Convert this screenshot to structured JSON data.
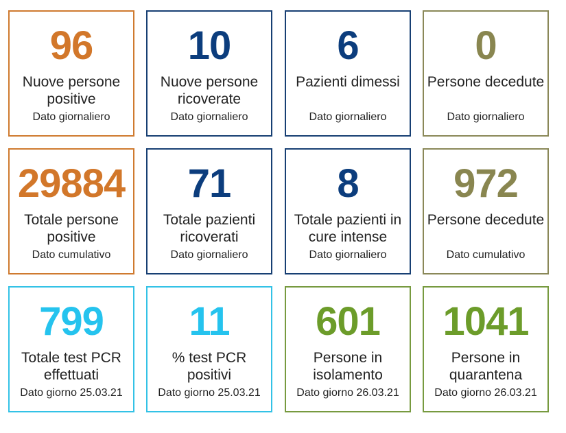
{
  "cards": [
    {
      "value": "96",
      "label": "Nuove persone positive",
      "sub": "Dato giornaliero",
      "color": "#d2772a"
    },
    {
      "value": "10",
      "label": "Nuove persone ricoverate",
      "sub": "Dato giornaliero",
      "color": "#0c3d7d"
    },
    {
      "value": "6",
      "label": "Pazienti dimessi",
      "sub": "Dato giornaliero",
      "color": "#0c3d7d"
    },
    {
      "value": "0",
      "label": "Persone decedute",
      "sub": "Dato giornaliero",
      "color": "#898650"
    },
    {
      "value": "29884",
      "label": "Totale persone positive",
      "sub": "Dato cumulativo",
      "color": "#d2772a"
    },
    {
      "value": "71",
      "label": "Totale pazienti ricoverati",
      "sub": "Dato giornaliero",
      "color": "#0c3d7d"
    },
    {
      "value": "8",
      "label": "Totale pazienti in cure intense",
      "sub": "Dato giornaliero",
      "color": "#0c3d7d"
    },
    {
      "value": "972",
      "label": "Persone decedute",
      "sub": "Dato cumulativo",
      "color": "#898650"
    },
    {
      "value": "799",
      "label": "Totale test PCR effettuati",
      "sub": "Dato giorno 25.03.21",
      "color": "#25c3ee"
    },
    {
      "value": "11",
      "label": "% test PCR positivi",
      "sub": "Dato giorno 25.03.21",
      "color": "#25c3ee"
    },
    {
      "value": "601",
      "label": "Persone in isolamento",
      "sub": "Dato giorno 26.03.21",
      "color": "#6c9c2a"
    },
    {
      "value": "1041",
      "label": "Persone in quarantena",
      "sub": "Dato giorno 26.03.21",
      "color": "#6c9c2a"
    }
  ]
}
